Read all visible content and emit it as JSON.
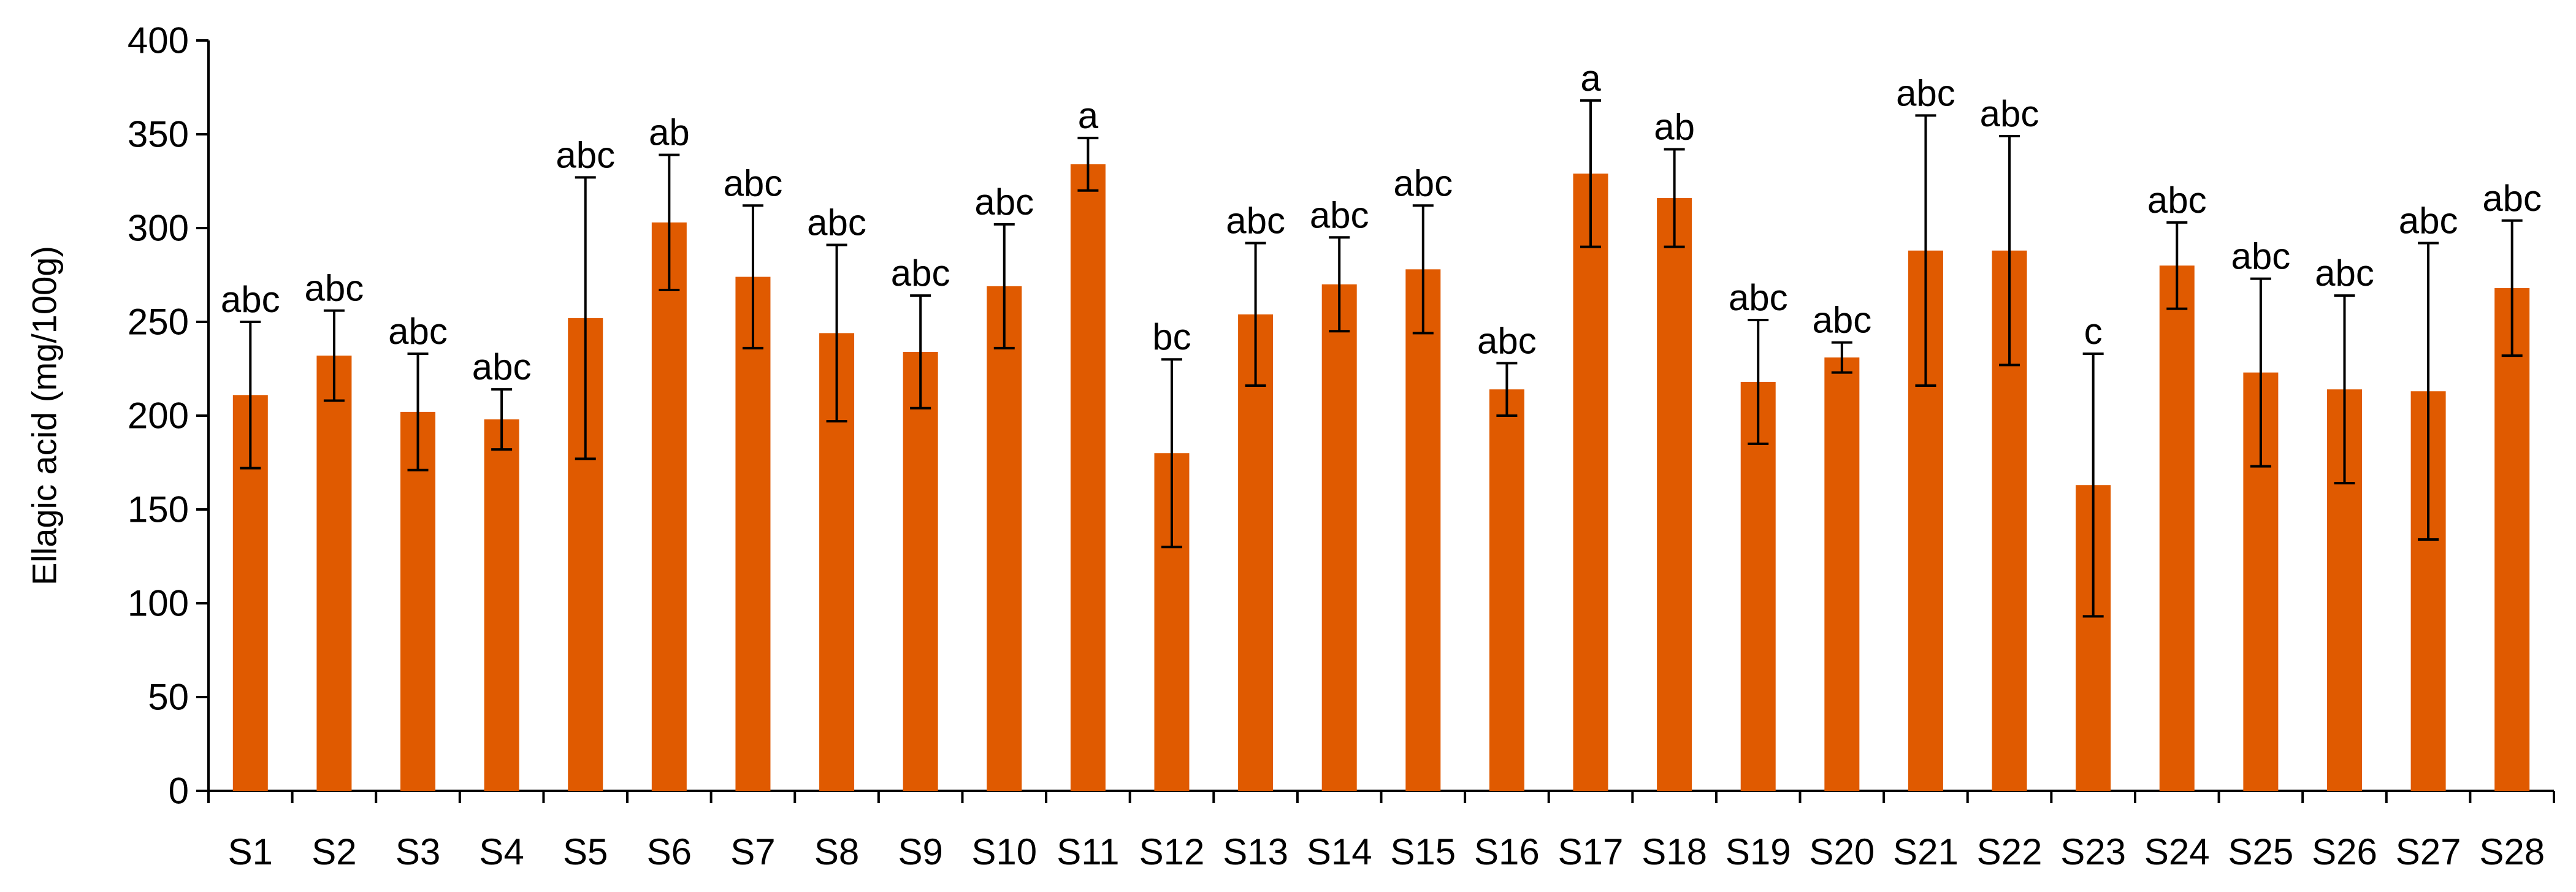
{
  "chart_data": {
    "type": "bar",
    "title": "",
    "xlabel": "",
    "ylabel": "Ellagic acid  (mg/100g)",
    "ylim": [
      0,
      400
    ],
    "yticks": [
      0,
      50,
      100,
      150,
      200,
      250,
      300,
      350,
      400
    ],
    "grid": false,
    "legend": "none",
    "bar_color": "#E05A00",
    "error_color": "#000000",
    "categories": [
      "S1",
      "S2",
      "S3",
      "S4",
      "S5",
      "S6",
      "S7",
      "S8",
      "S9",
      "S10",
      "S11",
      "S12",
      "S13",
      "S14",
      "S15",
      "S16",
      "S17",
      "S18",
      "S19",
      "S20",
      "S21",
      "S22",
      "S23",
      "S24",
      "S25",
      "S26",
      "S27",
      "S28"
    ],
    "values": [
      211,
      232,
      202,
      198,
      252,
      303,
      274,
      244,
      234,
      269,
      334,
      180,
      254,
      270,
      278,
      214,
      329,
      316,
      218,
      231,
      288,
      288,
      163,
      280,
      223,
      214,
      213,
      268
    ],
    "errors": [
      39,
      24,
      31,
      16,
      75,
      36,
      38,
      47,
      30,
      33,
      14,
      50,
      38,
      25,
      34,
      14,
      39,
      26,
      33,
      8,
      72,
      61,
      70,
      23,
      50,
      50,
      79,
      36
    ],
    "significance": [
      "abc",
      "abc",
      "abc",
      "abc",
      "abc",
      "ab",
      "abc",
      "abc",
      "abc",
      "abc",
      "a",
      "bc",
      "abc",
      "abc",
      "abc",
      "abc",
      "a",
      "ab",
      "abc",
      "abc",
      "abc",
      "abc",
      "c",
      "abc",
      "abc",
      "abc",
      "abc",
      "abc"
    ]
  }
}
